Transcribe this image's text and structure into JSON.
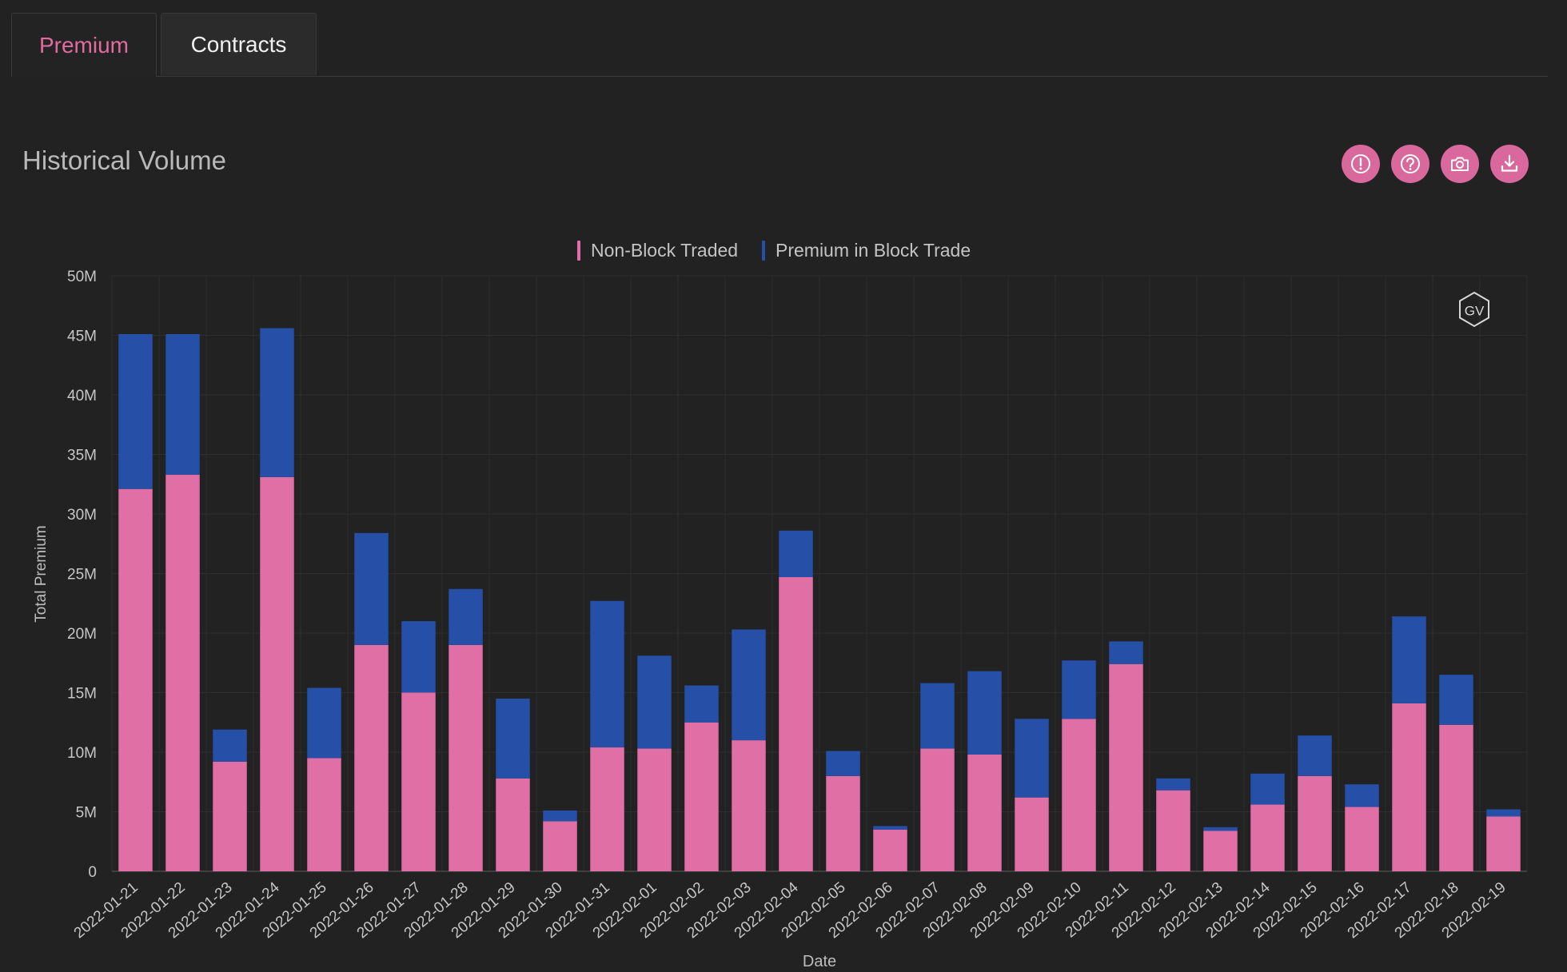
{
  "tabs": [
    {
      "label": "Premium",
      "active": true
    },
    {
      "label": "Contracts",
      "active": false
    }
  ],
  "header": {
    "title": "Historical Volume"
  },
  "toolbar": {
    "buttons": [
      {
        "icon": "alert-icon",
        "name": "alert-button"
      },
      {
        "icon": "help-icon",
        "name": "help-button"
      },
      {
        "icon": "camera-icon",
        "name": "screenshot-button"
      },
      {
        "icon": "download-icon",
        "name": "download-button"
      }
    ]
  },
  "watermark": "GV",
  "colors": {
    "accent": "#df6c9d",
    "non_block": "#e06fa5",
    "block": "#2650a8",
    "grid": "#2e2e2e"
  },
  "chart_data": {
    "type": "bar",
    "stacked": true,
    "title": "",
    "xlabel": "Date",
    "ylabel": "Total Premium",
    "ylim": [
      0,
      50000000
    ],
    "yticks": [
      "0",
      "5M",
      "10M",
      "15M",
      "20M",
      "25M",
      "30M",
      "35M",
      "40M",
      "45M",
      "50M"
    ],
    "grid": true,
    "legend_position": "top-center",
    "categories": [
      "2022-01-21",
      "2022-01-22",
      "2022-01-23",
      "2022-01-24",
      "2022-01-25",
      "2022-01-26",
      "2022-01-27",
      "2022-01-28",
      "2022-01-29",
      "2022-01-30",
      "2022-01-31",
      "2022-02-01",
      "2022-02-02",
      "2022-02-03",
      "2022-02-04",
      "2022-02-05",
      "2022-02-06",
      "2022-02-07",
      "2022-02-08",
      "2022-02-09",
      "2022-02-10",
      "2022-02-11",
      "2022-02-12",
      "2022-02-13",
      "2022-02-14",
      "2022-02-15",
      "2022-02-16",
      "2022-02-17",
      "2022-02-18",
      "2022-02-19"
    ],
    "series": [
      {
        "name": "Non-Block Traded",
        "color": "#e06fa5",
        "values": [
          32.1,
          33.3,
          9.2,
          33.1,
          9.5,
          19.0,
          15.0,
          19.0,
          7.8,
          4.2,
          10.4,
          10.3,
          12.5,
          11.0,
          24.7,
          8.0,
          3.5,
          10.3,
          9.8,
          6.2,
          12.8,
          17.4,
          6.8,
          3.4,
          5.6,
          8.0,
          5.4,
          14.1,
          12.3,
          4.6
        ]
      },
      {
        "name": "Premium in Block Trade",
        "color": "#2650a8",
        "values": [
          13.0,
          11.8,
          2.7,
          12.5,
          5.9,
          9.4,
          6.0,
          4.7,
          6.7,
          0.9,
          12.3,
          7.8,
          3.1,
          9.3,
          3.9,
          2.1,
          0.3,
          5.5,
          7.0,
          6.6,
          4.9,
          1.9,
          1.0,
          0.3,
          2.6,
          3.4,
          1.9,
          7.3,
          4.2,
          0.6
        ]
      }
    ],
    "value_unit": "M"
  }
}
